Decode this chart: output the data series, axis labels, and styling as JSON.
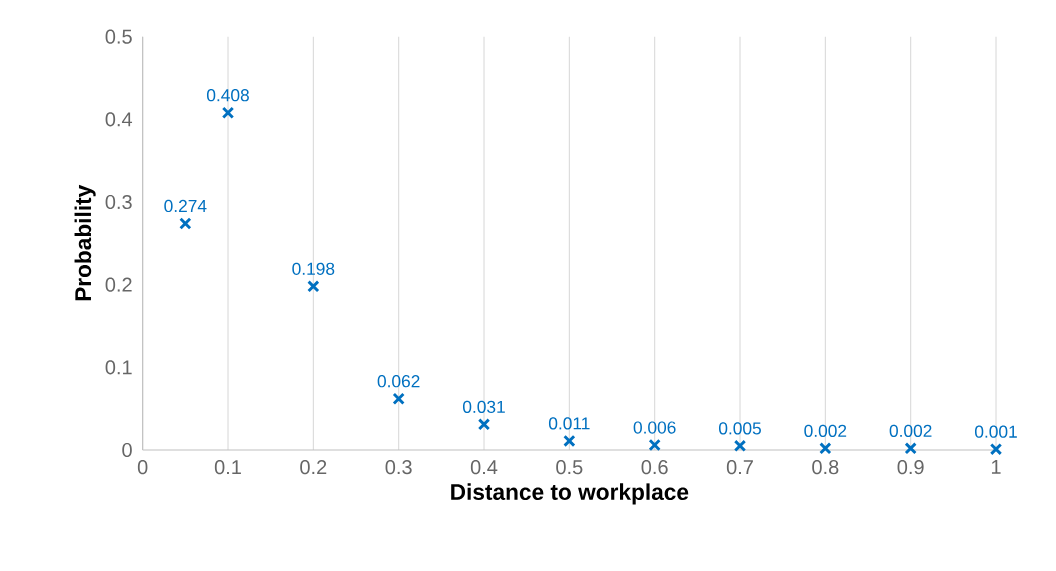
{
  "chart_data": {
    "type": "scatter",
    "xlabel": "Distance to workplace",
    "ylabel": "Probability",
    "x": [
      0.05,
      0.1,
      0.2,
      0.3,
      0.4,
      0.5,
      0.6,
      0.7,
      0.8,
      0.9,
      1
    ],
    "values": [
      0.274,
      0.408,
      0.198,
      0.062,
      0.031,
      0.011,
      0.006,
      0.005,
      0.002,
      0.002,
      0.001
    ],
    "color": "#0070c0",
    "marker": "cross",
    "data_labels": true,
    "xlim": [
      0,
      1
    ],
    "ylim": [
      0,
      0.5
    ],
    "xticks": [
      0,
      0.1,
      0.2,
      0.3,
      0.4,
      0.5,
      0.6,
      0.7,
      0.8,
      0.9,
      1
    ],
    "yticks": [
      0,
      0.1,
      0.2,
      0.3,
      0.4,
      0.5
    ],
    "grid": "x"
  }
}
